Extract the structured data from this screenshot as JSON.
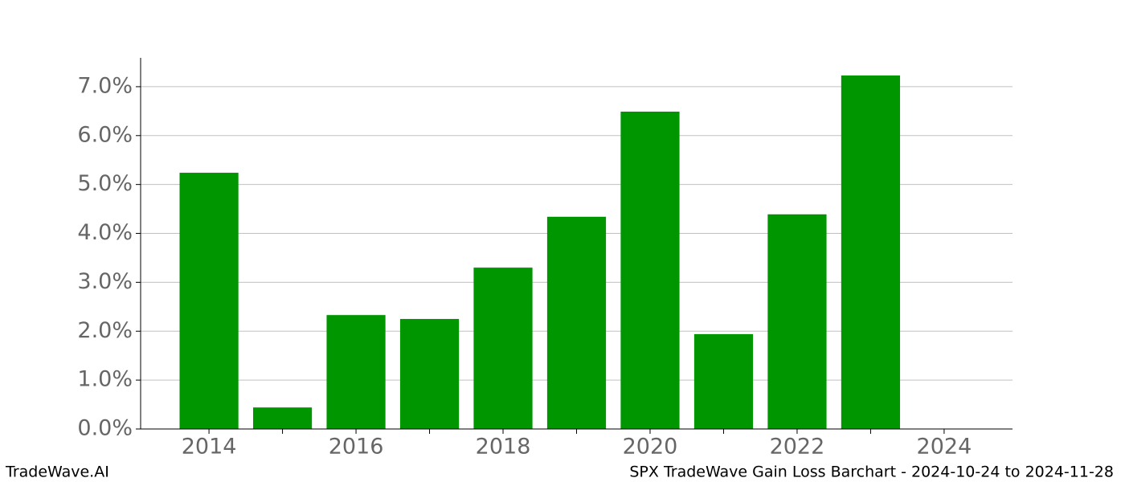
{
  "chart_data": {
    "type": "bar",
    "title": "SPX TradeWave Gain Loss Barchart - 2024-10-24 to 2024-11-28",
    "watermark": "TradeWave.AI",
    "x": [
      2014,
      2015,
      2016,
      2017,
      2018,
      2019,
      2020,
      2021,
      2022,
      2023
    ],
    "values": [
      5.24,
      0.44,
      2.33,
      2.25,
      3.3,
      4.34,
      6.49,
      1.94,
      4.39,
      7.23
    ],
    "color": "#009600",
    "bar_width": 0.8,
    "xlim": [
      2013.07,
      2024.93
    ],
    "xticks": [
      2014,
      2016,
      2018,
      2020,
      2022,
      2024
    ],
    "xminorticks": [
      2015,
      2017,
      2019,
      2021,
      2023
    ],
    "ylim": [
      0,
      7.59
    ],
    "yticks": [
      {
        "value": 0,
        "label": "0.0%"
      },
      {
        "value": 1,
        "label": "1.0%"
      },
      {
        "value": 2,
        "label": "2.0%"
      },
      {
        "value": 3,
        "label": "3.0%"
      },
      {
        "value": 4,
        "label": "4.0%"
      },
      {
        "value": 5,
        "label": "5.0%"
      },
      {
        "value": 6,
        "label": "6.0%"
      },
      {
        "value": 7,
        "label": "7.0%"
      }
    ],
    "grid": true
  }
}
